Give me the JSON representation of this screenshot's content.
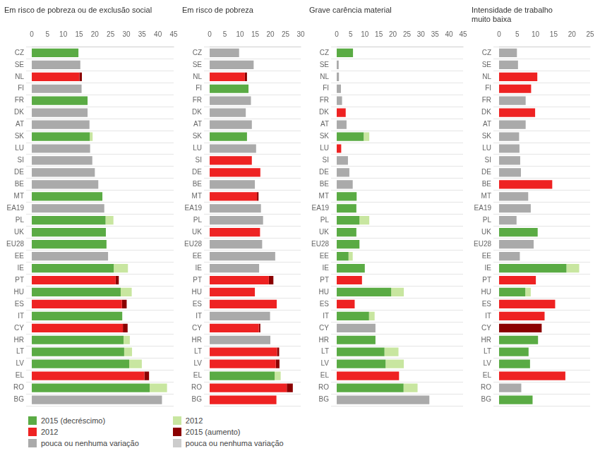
{
  "chart_data": [
    {
      "type": "bar",
      "orientation": "horizontal",
      "stacked": true,
      "grid": true,
      "legend": "bottom",
      "title": "Em risco de pobreza ou de exclusão social",
      "categories": [
        "CZ",
        "SE",
        "NL",
        "FI",
        "FR",
        "DK",
        "AT",
        "SK",
        "LU",
        "SI",
        "DE",
        "BE",
        "MT",
        "EA19",
        "PL",
        "UK",
        "EU28",
        "EE",
        "IE",
        "PT",
        "HU",
        "ES",
        "IT",
        "CY",
        "HR",
        "LT",
        "LV",
        "EL",
        "RO",
        "BG"
      ],
      "xlim": [
        0,
        45
      ],
      "xticks": [
        0,
        5,
        10,
        15,
        20,
        25,
        30,
        35,
        40,
        45
      ],
      "series": [
        {
          "name": "2015 (decréscimo)",
          "color": "#5AAB44",
          "values": [
            14.8,
            null,
            null,
            null,
            17.7,
            null,
            null,
            18.4,
            null,
            null,
            null,
            null,
            22.4,
            null,
            23.4,
            23.5,
            23.7,
            null,
            26.0,
            null,
            28.2,
            null,
            28.7,
            null,
            29.1,
            29.3,
            30.9,
            null,
            37.4,
            null
          ]
        },
        {
          "name": "2012",
          "color": "#C8E6A0",
          "values": [
            null,
            null,
            null,
            null,
            null,
            null,
            null,
            0.9,
            null,
            null,
            null,
            null,
            null,
            null,
            2.5,
            null,
            null,
            null,
            4.5,
            null,
            3.5,
            null,
            null,
            null,
            2.0,
            2.5,
            4.0,
            null,
            5.5,
            null
          ]
        },
        {
          "name": "2012",
          "color": "#EE2222",
          "values": [
            null,
            null,
            15.1,
            null,
            null,
            null,
            null,
            null,
            null,
            null,
            null,
            null,
            null,
            null,
            null,
            null,
            null,
            null,
            null,
            26.6,
            null,
            28.6,
            null,
            28.9,
            null,
            null,
            null,
            35.7,
            null,
            null
          ]
        },
        {
          "name": "2015 (aumento)",
          "color": "#8B0000",
          "values": [
            null,
            null,
            0.8,
            null,
            null,
            null,
            null,
            null,
            null,
            null,
            null,
            null,
            null,
            null,
            null,
            null,
            null,
            null,
            null,
            1.0,
            null,
            1.5,
            null,
            1.5,
            null,
            null,
            null,
            1.5,
            null,
            null
          ]
        },
        {
          "name": "pouca ou nenhuma variação",
          "color": "#AAAAAA",
          "values": [
            null,
            15.4,
            null,
            15.8,
            null,
            17.7,
            18.3,
            null,
            18.5,
            19.2,
            20.0,
            21.1,
            null,
            23.0,
            null,
            null,
            null,
            24.2,
            null,
            null,
            null,
            null,
            null,
            null,
            null,
            null,
            null,
            null,
            null,
            41.3
          ]
        },
        {
          "name": "pouca ou nenhuma variação",
          "color": "#CCCCCC",
          "values": [
            null,
            null,
            null,
            null,
            null,
            null,
            null,
            null,
            null,
            null,
            null,
            null,
            null,
            null,
            null,
            null,
            null,
            null,
            null,
            null,
            null,
            null,
            null,
            null,
            null,
            null,
            null,
            null,
            null,
            null
          ]
        }
      ]
    },
    {
      "type": "bar",
      "orientation": "horizontal",
      "stacked": true,
      "grid": true,
      "legend": "bottom",
      "title": "Em risco de pobreza",
      "categories": [
        "CZ",
        "SE",
        "NL",
        "FI",
        "FR",
        "DK",
        "AT",
        "SK",
        "LU",
        "SI",
        "DE",
        "BE",
        "MT",
        "EA19",
        "PL",
        "UK",
        "EU28",
        "EE",
        "IE",
        "PT",
        "HU",
        "ES",
        "IT",
        "CY",
        "HR",
        "LT",
        "LV",
        "EL",
        "RO",
        "BG"
      ],
      "xlim": [
        0,
        30
      ],
      "xticks": [
        0,
        5,
        10,
        15,
        20,
        25,
        30
      ],
      "series": [
        {
          "name": "2015 (decréscimo)",
          "color": "#5AAB44",
          "values": [
            null,
            null,
            null,
            12.8,
            null,
            null,
            null,
            12.3,
            null,
            null,
            null,
            null,
            null,
            null,
            null,
            null,
            null,
            null,
            null,
            null,
            null,
            null,
            null,
            null,
            null,
            null,
            null,
            21.4,
            null,
            null
          ]
        },
        {
          "name": "2012",
          "color": "#C8E6A0",
          "values": [
            null,
            null,
            null,
            null,
            null,
            null,
            null,
            null,
            null,
            null,
            null,
            null,
            null,
            null,
            null,
            null,
            null,
            null,
            null,
            null,
            null,
            null,
            null,
            null,
            null,
            null,
            null,
            2.0,
            null,
            null
          ]
        },
        {
          "name": "2012",
          "color": "#EE2222",
          "values": [
            null,
            null,
            11.6,
            null,
            null,
            null,
            null,
            null,
            null,
            13.9,
            16.7,
            null,
            15.6,
            null,
            null,
            16.6,
            null,
            null,
            null,
            19.5,
            14.9,
            22.1,
            null,
            16.2,
            null,
            22.2,
            21.8,
            null,
            25.4,
            22.0
          ]
        },
        {
          "name": "2015 (aumento)",
          "color": "#8B0000",
          "values": [
            null,
            null,
            0.7,
            null,
            null,
            null,
            null,
            null,
            null,
            null,
            null,
            null,
            0.5,
            null,
            null,
            null,
            null,
            null,
            null,
            1.5,
            null,
            null,
            null,
            0.5,
            null,
            0.7,
            1.2,
            null,
            2.0,
            null
          ]
        },
        {
          "name": "pouca ou nenhuma variação",
          "color": "#AAAAAA",
          "values": [
            9.7,
            14.5,
            null,
            null,
            13.6,
            11.9,
            13.9,
            null,
            15.3,
            null,
            null,
            14.9,
            null,
            16.9,
            17.6,
            null,
            17.3,
            21.6,
            16.3,
            null,
            null,
            null,
            19.9,
            null,
            20.0,
            null,
            null,
            null,
            null,
            null
          ]
        },
        {
          "name": "pouca ou nenhuma variação",
          "color": "#CCCCCC",
          "values": [
            null,
            null,
            null,
            null,
            null,
            null,
            null,
            null,
            null,
            null,
            null,
            null,
            null,
            null,
            null,
            null,
            null,
            null,
            null,
            null,
            null,
            null,
            null,
            null,
            null,
            null,
            null,
            null,
            null,
            null
          ]
        }
      ]
    },
    {
      "type": "bar",
      "orientation": "horizontal",
      "stacked": true,
      "grid": true,
      "legend": "bottom",
      "title": "Grave carência material",
      "categories": [
        "CZ",
        "SE",
        "NL",
        "FI",
        "FR",
        "DK",
        "AT",
        "SK",
        "LU",
        "SI",
        "DE",
        "BE",
        "MT",
        "EA19",
        "PL",
        "UK",
        "EU28",
        "EE",
        "IE",
        "PT",
        "HU",
        "ES",
        "IT",
        "CY",
        "HR",
        "LT",
        "LV",
        "EL",
        "RO",
        "BG"
      ],
      "xlim": [
        0,
        45
      ],
      "xticks": [
        0,
        5,
        10,
        15,
        20,
        25,
        30,
        35,
        40,
        45
      ],
      "series": [
        {
          "name": "2015 (decréscimo)",
          "color": "#5AAB44",
          "values": [
            5.8,
            null,
            null,
            null,
            null,
            null,
            null,
            9.6,
            null,
            null,
            null,
            null,
            7.1,
            7.0,
            8.1,
            7.0,
            8.1,
            4.2,
            10.0,
            null,
            19.4,
            null,
            11.5,
            null,
            13.8,
            17.0,
            17.4,
            null,
            23.8,
            null
          ]
        },
        {
          "name": "2012",
          "color": "#C8E6A0",
          "values": [
            null,
            null,
            null,
            null,
            null,
            null,
            null,
            2.0,
            null,
            null,
            null,
            null,
            null,
            null,
            3.5,
            null,
            null,
            1.5,
            null,
            null,
            4.5,
            null,
            2.0,
            null,
            null,
            5.0,
            6.5,
            null,
            5.0,
            null
          ]
        },
        {
          "name": "2012",
          "color": "#EE2222",
          "values": [
            null,
            null,
            null,
            null,
            null,
            3.2,
            null,
            null,
            1.6,
            null,
            null,
            null,
            null,
            null,
            null,
            null,
            null,
            null,
            null,
            9.0,
            null,
            6.4,
            null,
            null,
            null,
            null,
            null,
            22.2,
            null,
            null
          ]
        },
        {
          "name": "2015 (aumento)",
          "color": "#8B0000",
          "values": [
            null,
            null,
            null,
            null,
            null,
            null,
            null,
            null,
            null,
            null,
            null,
            null,
            null,
            null,
            null,
            null,
            null,
            null,
            null,
            null,
            null,
            null,
            null,
            null,
            null,
            null,
            null,
            null,
            null,
            null
          ]
        },
        {
          "name": "pouca ou nenhuma variação",
          "color": "#AAAAAA",
          "values": [
            null,
            0.7,
            0.8,
            1.5,
            1.9,
            null,
            3.5,
            null,
            null,
            4.0,
            4.5,
            5.7,
            null,
            null,
            null,
            null,
            null,
            null,
            null,
            null,
            null,
            null,
            null,
            13.8,
            null,
            null,
            null,
            null,
            null,
            33.0
          ]
        },
        {
          "name": "pouca ou nenhuma variação",
          "color": "#CCCCCC",
          "values": [
            null,
            null,
            null,
            null,
            null,
            null,
            null,
            null,
            null,
            null,
            null,
            null,
            null,
            null,
            null,
            null,
            null,
            null,
            null,
            null,
            null,
            null,
            null,
            null,
            null,
            null,
            null,
            null,
            null,
            null
          ]
        }
      ]
    },
    {
      "type": "bar",
      "orientation": "horizontal",
      "stacked": true,
      "grid": true,
      "legend": "bottom",
      "title": "Intensidade de trabalho\nmuito baixa",
      "categories": [
        "CZ",
        "SE",
        "NL",
        "FI",
        "FR",
        "DK",
        "AT",
        "SK",
        "LU",
        "SI",
        "DE",
        "BE",
        "MT",
        "EA19",
        "PL",
        "UK",
        "EU28",
        "EE",
        "IE",
        "PT",
        "HU",
        "ES",
        "IT",
        "CY",
        "HR",
        "LT",
        "LV",
        "EL",
        "RO",
        "BG"
      ],
      "xlim": [
        0,
        25
      ],
      "xticks": [
        0,
        5,
        10,
        15,
        20,
        25
      ],
      "series": [
        {
          "name": "2015 (decréscimo)",
          "color": "#5AAB44",
          "values": [
            null,
            null,
            null,
            null,
            null,
            null,
            null,
            null,
            null,
            null,
            null,
            null,
            null,
            null,
            null,
            10.6,
            null,
            null,
            18.5,
            null,
            7.2,
            null,
            null,
            null,
            10.7,
            8.1,
            8.5,
            null,
            null,
            9.2
          ]
        },
        {
          "name": "2012",
          "color": "#C8E6A0",
          "values": [
            null,
            null,
            null,
            null,
            null,
            null,
            null,
            null,
            null,
            null,
            null,
            null,
            null,
            null,
            null,
            null,
            null,
            null,
            3.5,
            null,
            1.5,
            null,
            null,
            null,
            null,
            null,
            null,
            null,
            null,
            null
          ]
        },
        {
          "name": "2012",
          "color": "#EE2222",
          "values": [
            null,
            null,
            10.5,
            8.8,
            null,
            9.9,
            null,
            null,
            null,
            null,
            null,
            14.6,
            null,
            null,
            null,
            null,
            null,
            null,
            null,
            10.1,
            null,
            15.4,
            12.5,
            null,
            null,
            null,
            null,
            18.2,
            null,
            null
          ]
        },
        {
          "name": "2015 (aumento)",
          "color": "#8B0000",
          "values": [
            null,
            null,
            null,
            null,
            null,
            null,
            null,
            null,
            null,
            null,
            null,
            null,
            null,
            null,
            null,
            null,
            null,
            null,
            null,
            null,
            null,
            null,
            null,
            11.7,
            null,
            null,
            null,
            null,
            null,
            null
          ]
        },
        {
          "name": "pouca ou nenhuma variação",
          "color": "#AAAAAA",
          "values": [
            4.9,
            5.2,
            null,
            null,
            7.3,
            null,
            7.3,
            5.5,
            5.6,
            5.8,
            6.0,
            null,
            8.0,
            8.7,
            4.8,
            null,
            9.5,
            5.7,
            null,
            null,
            null,
            null,
            null,
            null,
            null,
            null,
            null,
            null,
            6.1,
            null
          ]
        },
        {
          "name": "pouca ou nenhuma variação",
          "color": "#CCCCCC",
          "values": [
            null,
            null,
            null,
            null,
            null,
            null,
            null,
            null,
            null,
            null,
            null,
            null,
            null,
            null,
            null,
            null,
            null,
            null,
            null,
            null,
            null,
            null,
            null,
            null,
            null,
            null,
            null,
            null,
            null,
            null
          ]
        }
      ]
    }
  ]
}
